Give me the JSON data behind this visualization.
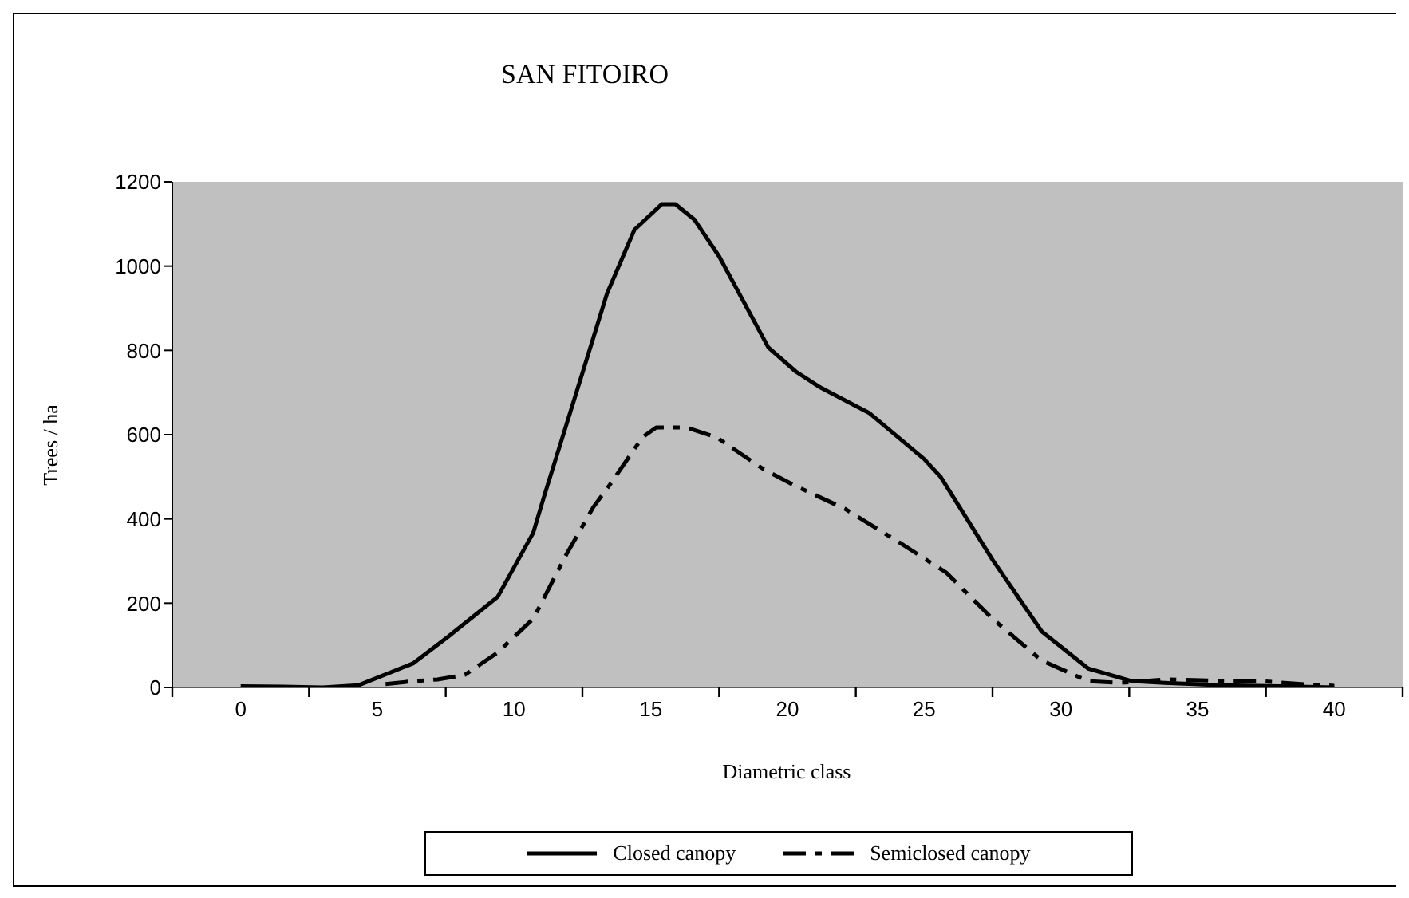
{
  "chart_data": {
    "type": "line",
    "title": "SAN FITOIRO",
    "xlabel": "Diametric class",
    "ylabel": "Trees / ha",
    "xlim": [
      -2.5,
      42.5
    ],
    "xticks": [
      {
        "value": -2.5,
        "label": null
      },
      0,
      {
        "value": 2.5,
        "label": null
      },
      5,
      {
        "value": 7.5,
        "label": null
      },
      10,
      {
        "value": 12.5,
        "label": null
      },
      15,
      {
        "value": 17.5,
        "label": null
      },
      20,
      {
        "value": 22.5,
        "label": null
      },
      25,
      {
        "value": 27.5,
        "label": null
      },
      30,
      {
        "value": 32.5,
        "label": null
      },
      35,
      {
        "value": 37.5,
        "label": null
      },
      40,
      {
        "value": 42.5,
        "label": null
      }
    ],
    "ylim": [
      0,
      1200
    ],
    "yticks": [
      0,
      200,
      400,
      600,
      800,
      1000,
      1200
    ],
    "grid": false,
    "legend": "bottom",
    "marker": "none",
    "series": [
      {
        "name": "Closed canopy",
        "color": "#000000",
        "line_style": "solid",
        "x": [
          0,
          1.5,
          3,
          4.3,
          6.3,
          7.6,
          9.4,
          10.7,
          11.1,
          12.5,
          13.4,
          14.4,
          15.4,
          15.9,
          16.6,
          17.5,
          19.3,
          20.3,
          21.2,
          23.0,
          25.0,
          25.6,
          27.5,
          29.3,
          31.0,
          32.6,
          33.8,
          36,
          38,
          40
        ],
        "values": [
          3,
          2,
          0,
          5,
          57,
          121,
          215,
          367,
          454,
          746,
          935,
          1086,
          1147,
          1147,
          1110,
          1023,
          807,
          750,
          712,
          651,
          542,
          500,
          303,
          133,
          45,
          15,
          11,
          5,
          3,
          0
        ]
      },
      {
        "name": "Semiclosed canopy",
        "color": "#000000",
        "line_style": "dashed",
        "x": [
          5.3,
          6.3,
          7.2,
          8.2,
          9.4,
          10.7,
          11.9,
          12.9,
          13.5,
          14.7,
          15.2,
          16.3,
          17.4,
          19.1,
          20.3,
          22.1,
          24.0,
          25.8,
          27.5,
          29.3,
          31.0,
          32.2,
          33.8,
          36.3,
          37.3,
          38.8,
          40
        ],
        "values": [
          8,
          15,
          19,
          30,
          83,
          163,
          314,
          428,
          481,
          594,
          617,
          617,
          594,
          519,
          478,
          424,
          348,
          273,
          163,
          64,
          15,
          11,
          19,
          15,
          15,
          8,
          4
        ]
      }
    ]
  }
}
